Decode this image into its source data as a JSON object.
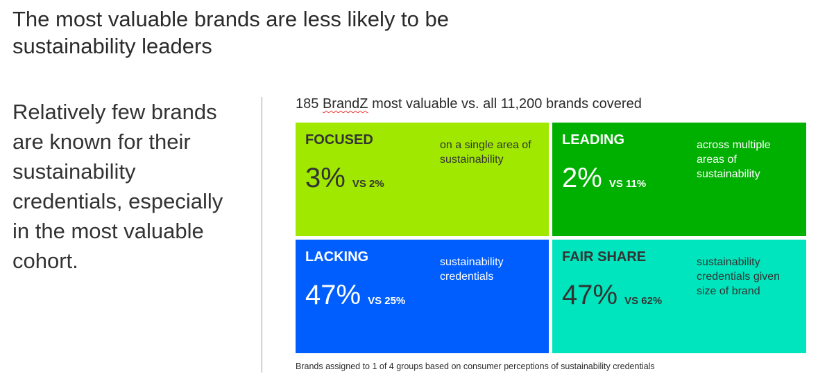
{
  "title": "The most valuable brands are less likely to be sustainability leaders",
  "lead_text": "Relatively few brands are known for their sustainability credentials, especially in the most valuable cohort.",
  "subtitle": {
    "prefix": "185 ",
    "brand": "BrandZ",
    "suffix": " most valuable vs. all 11,200 brands covered"
  },
  "quadrants": [
    {
      "name": "FOCUSED",
      "pct": "3%",
      "vs": "VS 2%",
      "desc": "on a single area of sustainability",
      "color": "#a0e800"
    },
    {
      "name": "LEADING",
      "pct": "2%",
      "vs": "VS 11%",
      "desc": "across multiple areas of sustainability",
      "color": "#00b000"
    },
    {
      "name": "LACKING",
      "pct": "47%",
      "vs": "VS 25%",
      "desc": "sustainability credentials",
      "color": "#005eff"
    },
    {
      "name": "FAIR SHARE",
      "pct": "47%",
      "vs": "VS 62%",
      "desc": "sustainability credentials given size of brand",
      "color": "#00e5bd"
    }
  ],
  "footnote": "Brands assigned to 1 of 4 groups based on consumer perceptions of sustainability credentials"
}
